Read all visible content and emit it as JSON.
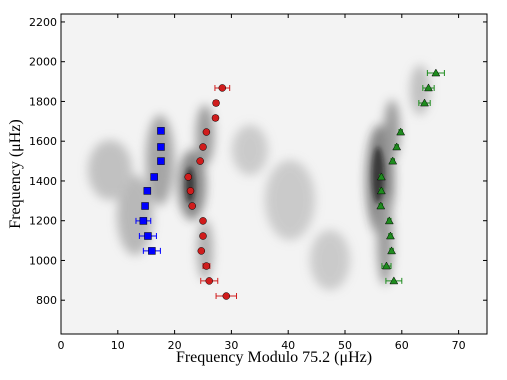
{
  "chart_data": {
    "type": "scatter",
    "xlabel": "Frequency Modulo 75.2 (μHz)",
    "ylabel": "Frequency (μHz)",
    "xlim": [
      0,
      75
    ],
    "ylim": [
      630,
      2240
    ],
    "xticks": [
      0,
      10,
      20,
      30,
      40,
      50,
      60,
      70
    ],
    "yticks": [
      800,
      1000,
      1200,
      1400,
      1600,
      1800,
      2000,
      2200
    ],
    "series": [
      {
        "color": "#0000ff",
        "marker": "square",
        "x": [
          17.6,
          17.6,
          17.6,
          16.4,
          15.2,
          14.8,
          14.5,
          15.3,
          16.0
        ],
        "values": [
          1652,
          1571,
          1500,
          1420,
          1350,
          1274,
          1199,
          1123,
          1048
        ],
        "xerr": [
          0.4,
          0.4,
          0.3,
          0.3,
          0.3,
          0.4,
          1.3,
          1.5,
          1.5
        ]
      },
      {
        "color": "#d01c1c",
        "marker": "circle",
        "x": [
          28.4,
          27.3,
          27.2,
          25.6,
          25.0,
          24.5,
          22.4,
          22.8,
          23.1,
          25.0,
          25.0,
          24.7,
          25.6,
          26.1,
          29.1
        ],
        "values": [
          1868,
          1792,
          1717,
          1646,
          1571,
          1500,
          1420,
          1350,
          1274,
          1199,
          1123,
          1048,
          972,
          897,
          821
        ],
        "xerr": [
          1.3,
          0.4,
          0.4,
          0.3,
          0.3,
          0.3,
          0.3,
          0.4,
          0.3,
          0.3,
          0.3,
          0.3,
          0.6,
          1.5,
          1.8
        ]
      },
      {
        "color": "#1e8c1e",
        "marker": "triangle",
        "x": [
          66.0,
          64.7,
          64.0,
          59.8,
          59.1,
          58.4,
          56.4,
          56.4,
          56.3,
          57.8,
          58.0,
          58.2,
          57.3,
          58.6
        ],
        "values": [
          1943,
          1868,
          1792,
          1646,
          1571,
          1500,
          1420,
          1350,
          1274,
          1199,
          1123,
          1048,
          972,
          897
        ],
        "xerr": [
          1.5,
          1.0,
          1.0,
          0.3,
          0.3,
          0.3,
          0.3,
          0.3,
          0.3,
          0.3,
          0.3,
          0.3,
          0.8,
          1.4
        ]
      }
    ]
  }
}
